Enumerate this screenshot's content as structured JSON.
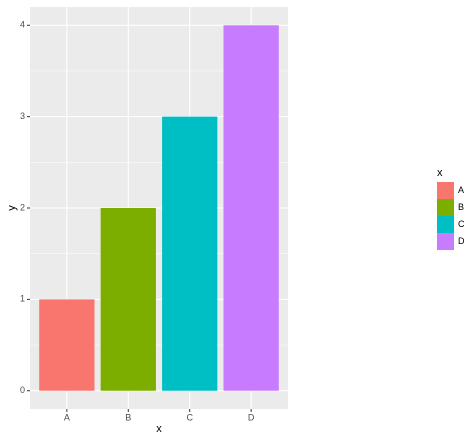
{
  "chart_data": {
    "type": "bar",
    "categories": [
      "A",
      "B",
      "C",
      "D"
    ],
    "values": [
      1,
      2,
      3,
      4
    ],
    "colors": [
      "#F8766D",
      "#7CAE00",
      "#00BFC4",
      "#C77CFF"
    ],
    "xlabel": "x",
    "ylabel": "y",
    "legend_title": "x",
    "legend_position": "right",
    "ylim": [
      -0.2,
      4.2
    ],
    "yticks": [
      0,
      1,
      2,
      3,
      4
    ],
    "grid": true
  }
}
